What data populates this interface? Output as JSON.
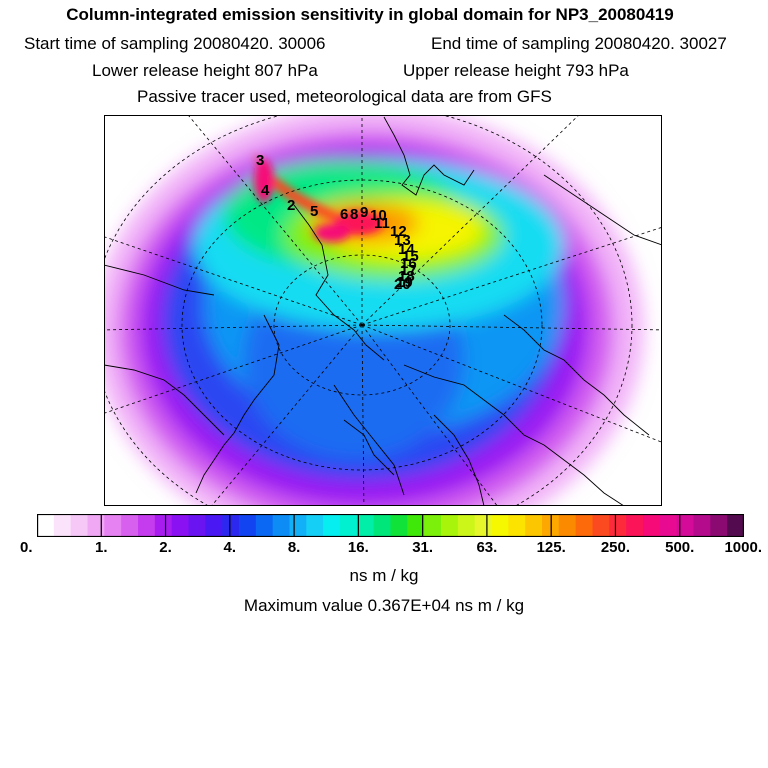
{
  "header": {
    "title": "Column-integrated emission sensitivity in global domain for NP3_20080419",
    "start_label": "Start time of sampling 20080420. 30006",
    "end_label": "End time of sampling 20080420. 30027",
    "lower_label": "Lower release height  807 hPa",
    "upper_label": "Upper release height  793 hPa",
    "note": "Passive tracer used, meteorological data are from GFS"
  },
  "map": {
    "projection": "polar stereographic (north pole)",
    "trajectory_labels": [
      "3",
      "4",
      "2",
      "5",
      "6",
      "8",
      "9",
      "10",
      "11",
      "12",
      "13",
      "14",
      "15",
      "16",
      "17",
      "18",
      "19",
      "20"
    ]
  },
  "colorbar": {
    "ticks": [
      "0.",
      "1.",
      "2.",
      "4.",
      "8.",
      "16.",
      "31.",
      "63.",
      "125.",
      "250.",
      "500.",
      "1000."
    ],
    "colors": [
      "#ffffff",
      "#fbe4fb",
      "#f6c8f8",
      "#f0a8f4",
      "#e682f2",
      "#d760ef",
      "#c43cee",
      "#a81cf0",
      "#8a12f2",
      "#6a14f2",
      "#4a18f2",
      "#2d28f0",
      "#1244f2",
      "#0a68f2",
      "#0c8cf4",
      "#12b0f6",
      "#16cff6",
      "#06eef0",
      "#00f0d0",
      "#00eea8",
      "#00e67a",
      "#10e23a",
      "#40e80a",
      "#7cf00a",
      "#a8f40a",
      "#ccf61a",
      "#e6f62a",
      "#f6f800",
      "#fce400",
      "#fcc600",
      "#fca800",
      "#fc8a00",
      "#fc6a0a",
      "#fc4a20",
      "#fc2a3a",
      "#fc1458",
      "#f60a78",
      "#e80a90",
      "#d40a98",
      "#b40a8c",
      "#8a0a72",
      "#540a4e"
    ],
    "units": "ns m / kg"
  },
  "footer": {
    "max_value": "Maximum value  0.367E+04 ns m / kg"
  }
}
